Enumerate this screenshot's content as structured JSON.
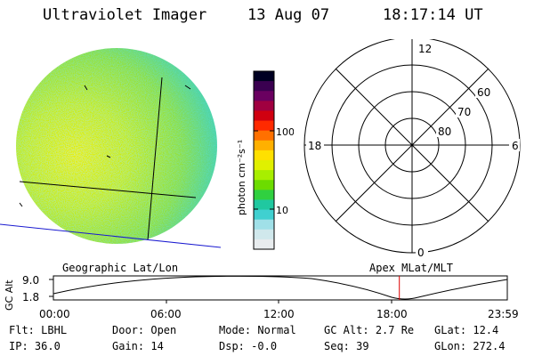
{
  "header": {
    "instrument": "Ultraviolet Imager",
    "date": "13 Aug 07",
    "time": "18:17:14 UT"
  },
  "image_panel": {
    "label": "Geographic Lat/Lon"
  },
  "colorbar": {
    "unit_label": "photon cm⁻²s⁻¹",
    "tick_labels": [
      "100",
      "10"
    ],
    "colors": [
      "#000022",
      "#3a0050",
      "#6a0060",
      "#a00040",
      "#d00010",
      "#ff2a00",
      "#ff7000",
      "#ffb000",
      "#ffe000",
      "#e0f000",
      "#a8ee00",
      "#6cdc00",
      "#30d040",
      "#20c8a0",
      "#40d0d0",
      "#a0e0e8",
      "#d0e8ec",
      "#e8ecee"
    ]
  },
  "polar_plot": {
    "label": "Apex MLat/MLT",
    "mlt_labels": {
      "top": "12",
      "left": "18",
      "right": "6",
      "bottom": "0"
    },
    "mlat_labels": [
      "60",
      "70",
      "80"
    ]
  },
  "altitude_plot": {
    "ylabel": "GC Alt",
    "y_ticks": [
      "9.0",
      "1.8"
    ],
    "x_ticks": [
      "00:00",
      "06:00",
      "12:00",
      "18:00",
      "23:59"
    ],
    "marker_time_hours": 18.29,
    "marker_color": "#dd0000"
  },
  "info": {
    "row1": [
      {
        "key": "Flt:",
        "value": "LBHL"
      },
      {
        "key": "Door:",
        "value": "Open"
      },
      {
        "key": "Mode:",
        "value": "Normal"
      },
      {
        "key": "GC Alt:",
        "value": "2.7 Re"
      },
      {
        "key": "GLat:",
        "value": "12.4"
      }
    ],
    "row2": [
      {
        "key": "IP:",
        "value": "36.0"
      },
      {
        "key": "Gain:",
        "value": "14"
      },
      {
        "key": "Dsp:",
        "value": "-0.0"
      },
      {
        "key": "Seq:",
        "value": "39"
      },
      {
        "key": "GLon:",
        "value": "272.4"
      }
    ]
  }
}
